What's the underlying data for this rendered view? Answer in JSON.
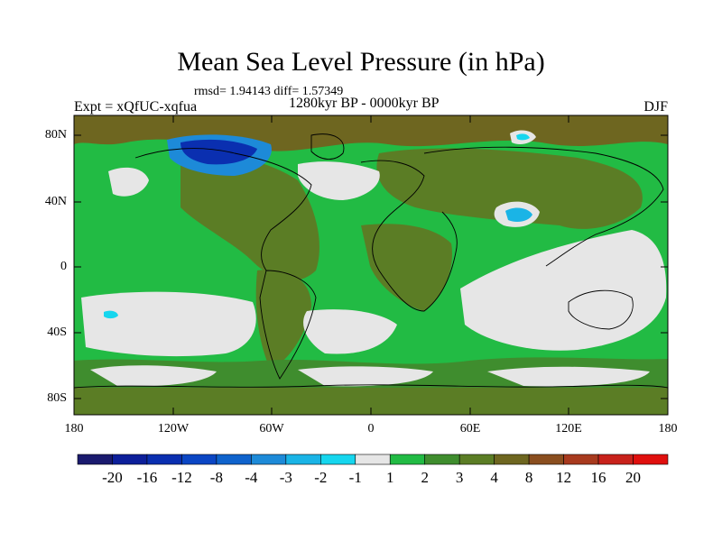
{
  "title": "Mean Sea Level Pressure (in hPa)",
  "stats": "rmsd= 1.94143 diff= 1.57349",
  "experiment": "Expt = xQfUC-xqfua",
  "period": "1280kyr BP - 0000kyr BP",
  "season": "DJF",
  "lat_labels": [
    "80N",
    "40N",
    "0",
    "40S",
    "80S"
  ],
  "lon_labels": [
    "180",
    "120W",
    "60W",
    "0",
    "60E",
    "120E",
    "180"
  ],
  "colorbar": {
    "labels": [
      "-20",
      "-16",
      "-12",
      "-8",
      "-4",
      "-3",
      "-2",
      "-1",
      "1",
      "2",
      "3",
      "4",
      "8",
      "12",
      "16",
      "20"
    ],
    "colors": [
      "#1a1a6e",
      "#0d1f9a",
      "#0a2fb0",
      "#0b46c4",
      "#0f63cc",
      "#1d8ad8",
      "#1ab4e6",
      "#16d6ee",
      "#e6e6e6",
      "#22bb44",
      "#3f8d2e",
      "#5b7d25",
      "#6e6620",
      "#8a4e1f",
      "#a83a1e",
      "#c8221b",
      "#e0100e"
    ]
  },
  "colors": {
    "neutral": "#e6e6e6",
    "green": "#22bb44",
    "dark_green": "#3f8d2e",
    "olive": "#5b7d25",
    "brown": "#6e6620"
  }
}
